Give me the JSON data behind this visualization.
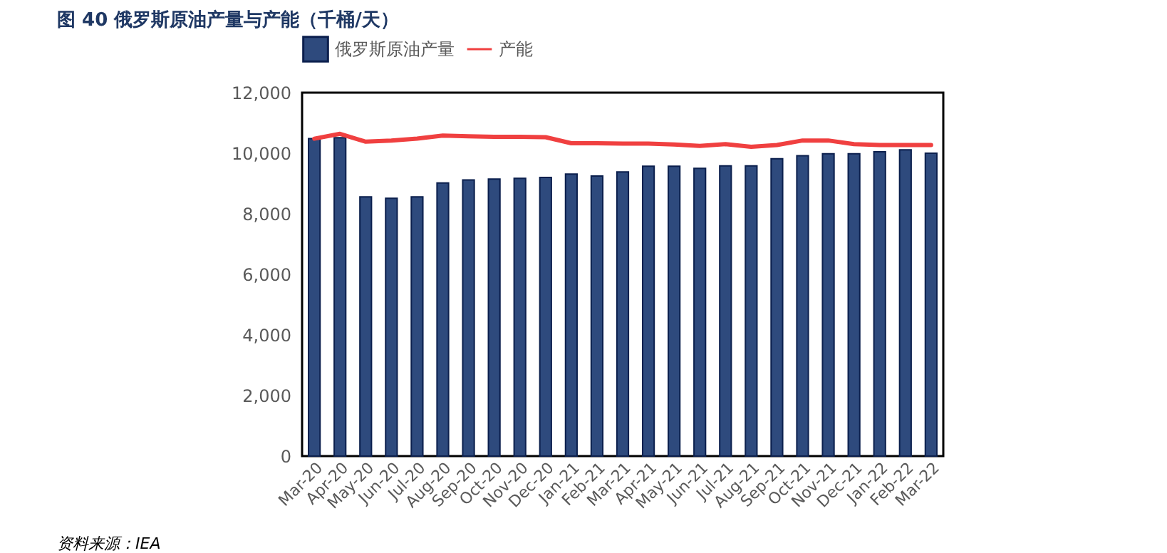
{
  "chart_data": {
    "type": "bar",
    "title": "图 40  俄罗斯原油产量与产能（千桶/天）",
    "categories": [
      "Mar-20",
      "Apr-20",
      "May-20",
      "Jun-20",
      "Jul-20",
      "Aug-20",
      "Sep-20",
      "Oct-20",
      "Nov-20",
      "Dec-20",
      "Jan-21",
      "Feb-21",
      "Mar-21",
      "Apr-21",
      "May-21",
      "Jun-21",
      "Jul-21",
      "Aug-21",
      "Sep-21",
      "Oct-21",
      "Nov-21",
      "Dec-21",
      "Jan-22",
      "Feb-22",
      "Mar-22"
    ],
    "series": [
      {
        "name": "俄罗斯原油产量",
        "color": "#2e4a7d",
        "values": [
          10480,
          10510,
          8560,
          8510,
          8560,
          9020,
          9120,
          9150,
          9170,
          9200,
          9310,
          9250,
          9380,
          9570,
          9570,
          9500,
          9580,
          9580,
          9820,
          9920,
          9980,
          9980,
          10050,
          10110,
          10000
        ]
      },
      {
        "name": "产能",
        "type": "line",
        "color": "#f04040",
        "values": [
          10480,
          10640,
          10380,
          10420,
          10480,
          10580,
          10560,
          10540,
          10540,
          10530,
          10330,
          10330,
          10320,
          10320,
          10290,
          10240,
          10300,
          10210,
          10270,
          10420,
          10420,
          10300,
          10270,
          10270,
          10270
        ]
      }
    ],
    "ylim": [
      0,
      12000
    ],
    "yticks": [
      0,
      {
        "value": 2000,
        "label": "2,000"
      },
      {
        "value": 4000,
        "label": "4,000"
      },
      {
        "value": 6000,
        "label": "6,000"
      },
      {
        "value": 8000,
        "label": "8,000"
      },
      {
        "value": 10000,
        "label": "10,000"
      },
      {
        "value": 12000,
        "label": "12,000"
      }
    ],
    "grid": false,
    "legend": "top",
    "annotations": [
      "资料来源：IEA"
    ]
  }
}
